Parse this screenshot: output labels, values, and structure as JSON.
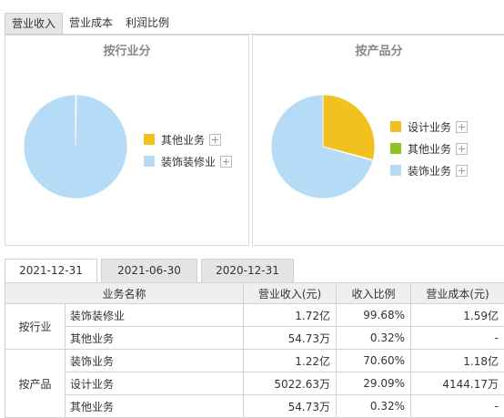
{
  "top_tabs": [
    {
      "label": "营业收入",
      "active": true
    },
    {
      "label": "营业成本",
      "active": false
    },
    {
      "label": "利润比例",
      "active": false
    }
  ],
  "charts": {
    "by_industry": {
      "title": "按行业分",
      "legend": [
        {
          "label": "其他业务",
          "color": "#f2c11f"
        },
        {
          "label": "装饰装修业",
          "color": "#b6dbf7"
        }
      ]
    },
    "by_product": {
      "title": "按产品分",
      "legend": [
        {
          "label": "设计业务",
          "color": "#f2c11f"
        },
        {
          "label": "其他业务",
          "color": "#8fc31f"
        },
        {
          "label": "装饰业务",
          "color": "#b6dbf7"
        }
      ]
    }
  },
  "chart_data": [
    {
      "type": "pie",
      "title": "按行业分",
      "series": [
        {
          "name": "其他业务",
          "value": 0.32,
          "color": "#f2c11f"
        },
        {
          "name": "装饰装修业",
          "value": 99.68,
          "color": "#b6dbf7"
        }
      ]
    },
    {
      "type": "pie",
      "title": "按产品分",
      "series": [
        {
          "name": "设计业务",
          "value": 29.09,
          "color": "#f2c11f"
        },
        {
          "name": "其他业务",
          "value": 0.32,
          "color": "#8fc31f"
        },
        {
          "name": "装饰业务",
          "value": 70.6,
          "color": "#b6dbf7"
        }
      ]
    }
  ],
  "date_tabs": [
    {
      "label": "2021-12-31",
      "active": true
    },
    {
      "label": "2021-06-30",
      "active": false
    },
    {
      "label": "2020-12-31",
      "active": false
    }
  ],
  "table": {
    "headers": {
      "name": "业务名称",
      "revenue": "营业收入(元)",
      "ratio": "收入比例",
      "cost": "营业成本(元)"
    },
    "groups": [
      {
        "label": "按行业",
        "rows": [
          {
            "name": "装饰装修业",
            "revenue": "1.72亿",
            "ratio": "99.68%",
            "cost": "1.59亿"
          },
          {
            "name": "其他业务",
            "revenue": "54.73万",
            "ratio": "0.32%",
            "cost": "-"
          }
        ]
      },
      {
        "label": "按产品",
        "rows": [
          {
            "name": "装饰业务",
            "revenue": "1.22亿",
            "ratio": "70.60%",
            "cost": "1.18亿"
          },
          {
            "name": "设计业务",
            "revenue": "5022.63万",
            "ratio": "29.09%",
            "cost": "4144.17万"
          },
          {
            "name": "其他业务",
            "revenue": "54.73万",
            "ratio": "0.32%",
            "cost": "-"
          }
        ]
      }
    ]
  }
}
